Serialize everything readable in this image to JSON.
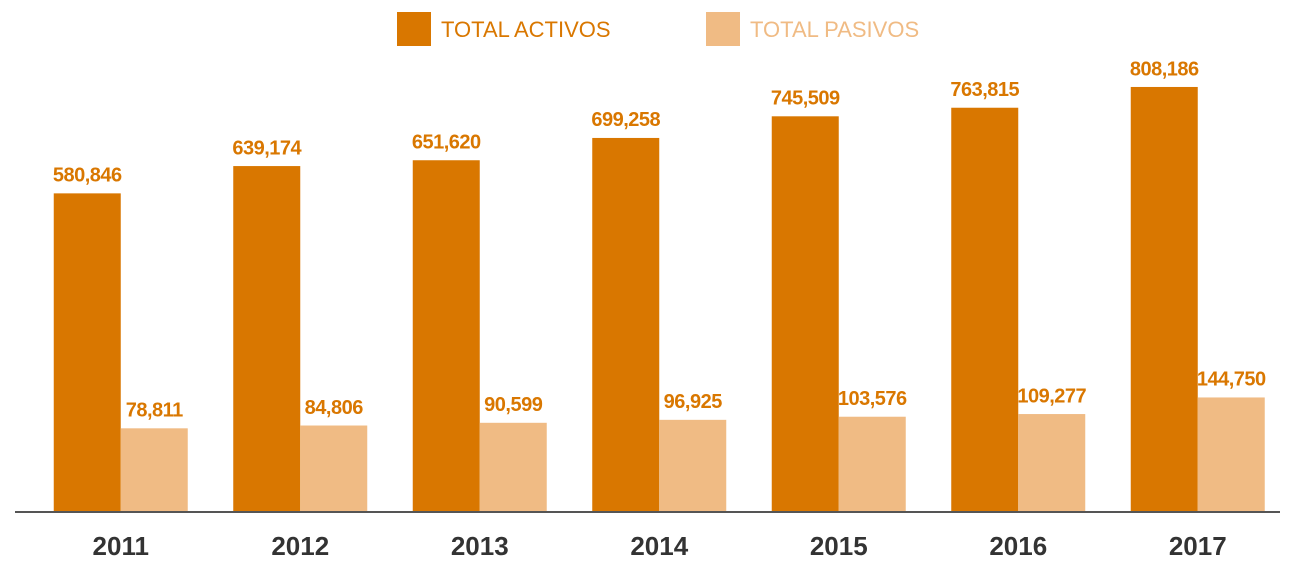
{
  "chart_data": {
    "type": "bar",
    "categories": [
      "2011",
      "2012",
      "2013",
      "2014",
      "2015",
      "2016",
      "2017"
    ],
    "series": [
      {
        "name": "TOTAL ACTIVOS",
        "color": "#d97700",
        "values": [
          580846,
          639174,
          651620,
          699258,
          745509,
          763815,
          808186
        ],
        "value_labels": [
          "580,846",
          "639,174",
          "651,620",
          "699,258",
          "745,509",
          "763,815",
          "808,186"
        ]
      },
      {
        "name": "TOTAL PASIVOS",
        "color": "#f0bb84",
        "values": [
          78811,
          84806,
          90599,
          96925,
          103576,
          109277,
          144750
        ],
        "value_labels": [
          "78,811",
          "84,806",
          "90,599",
          "96,925",
          "103,576",
          "109,277",
          "144,750"
        ]
      }
    ],
    "ylim": [
      -100000,
      900000
    ],
    "legend": "top"
  }
}
